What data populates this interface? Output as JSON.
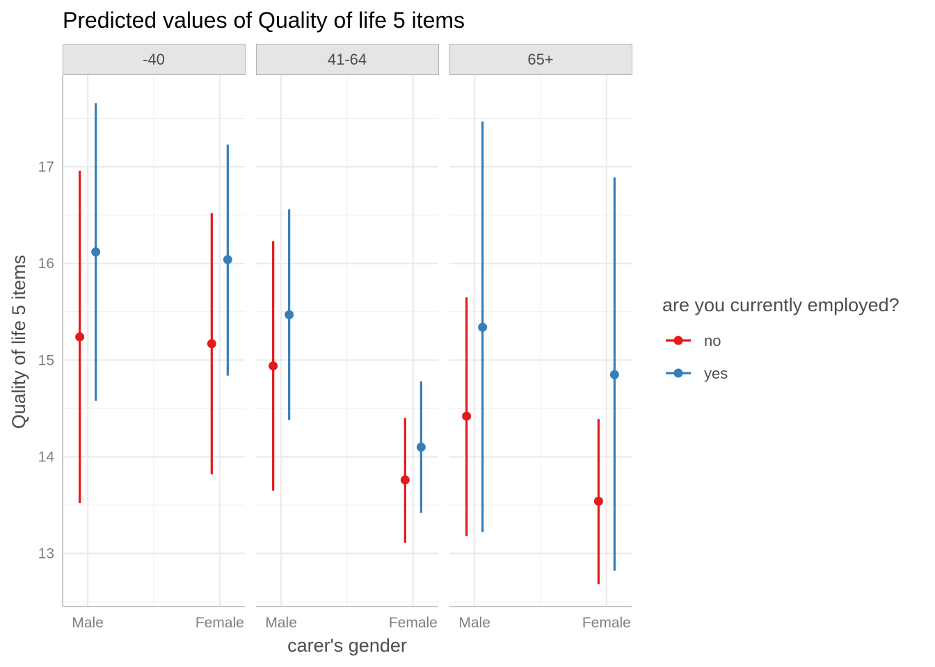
{
  "chart_data": {
    "type": "errorbar",
    "title": "Predicted values of Quality of life 5 items",
    "xlabel": "carer's gender",
    "ylabel": "Quality of life 5 items",
    "categories": [
      "Male",
      "Female"
    ],
    "facets": [
      "-40",
      "41-64",
      "65+"
    ],
    "yticks": [
      13,
      14,
      15,
      16,
      17
    ],
    "ylim": [
      12.45,
      17.95
    ],
    "grid": true,
    "legend": {
      "title": "are you currently employed?",
      "position": "right",
      "entries": [
        "no",
        "yes"
      ]
    },
    "series": [
      {
        "name": "no",
        "color": "#E41A1C",
        "points": [
          {
            "facet": "-40",
            "x": "Male",
            "y": 15.24,
            "ymin": 13.52,
            "ymax": 16.96
          },
          {
            "facet": "-40",
            "x": "Female",
            "y": 15.17,
            "ymin": 13.82,
            "ymax": 16.52
          },
          {
            "facet": "41-64",
            "x": "Male",
            "y": 14.94,
            "ymin": 13.65,
            "ymax": 16.23
          },
          {
            "facet": "41-64",
            "x": "Female",
            "y": 13.76,
            "ymin": 13.11,
            "ymax": 14.4
          },
          {
            "facet": "65+",
            "x": "Male",
            "y": 14.42,
            "ymin": 13.18,
            "ymax": 15.65
          },
          {
            "facet": "65+",
            "x": "Female",
            "y": 13.54,
            "ymin": 12.68,
            "ymax": 14.39
          }
        ]
      },
      {
        "name": "yes",
        "color": "#377EB8",
        "points": [
          {
            "facet": "-40",
            "x": "Male",
            "y": 16.12,
            "ymin": 14.58,
            "ymax": 17.66
          },
          {
            "facet": "-40",
            "x": "Female",
            "y": 16.04,
            "ymin": 14.84,
            "ymax": 17.23
          },
          {
            "facet": "41-64",
            "x": "Male",
            "y": 15.47,
            "ymin": 14.38,
            "ymax": 16.56
          },
          {
            "facet": "41-64",
            "x": "Female",
            "y": 14.1,
            "ymin": 13.42,
            "ymax": 14.78
          },
          {
            "facet": "65+",
            "x": "Male",
            "y": 15.34,
            "ymin": 13.22,
            "ymax": 17.47
          },
          {
            "facet": "65+",
            "x": "Female",
            "y": 14.85,
            "ymin": 12.82,
            "ymax": 16.89
          }
        ]
      }
    ]
  }
}
